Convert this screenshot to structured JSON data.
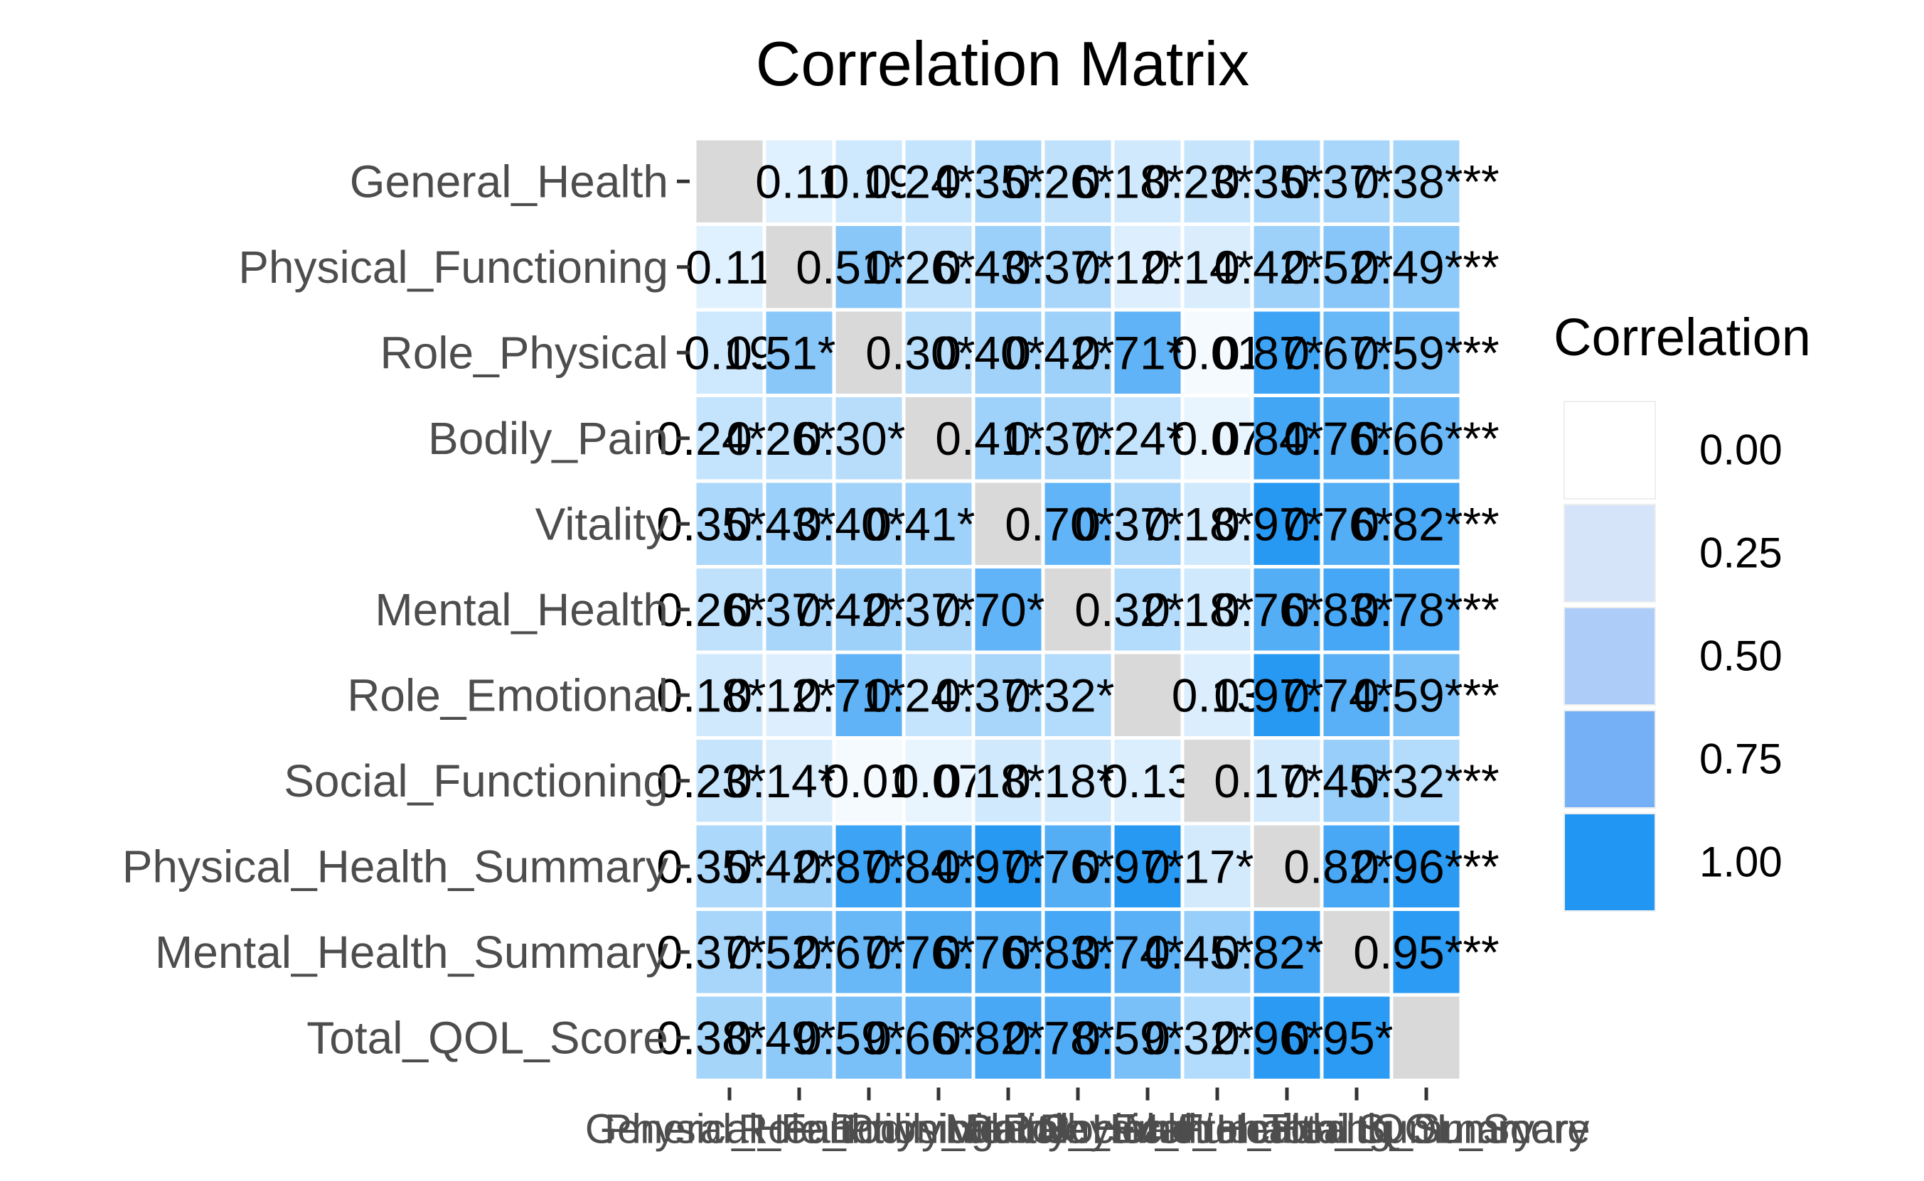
{
  "chart_data": {
    "type": "heatmap",
    "title": "Correlation Matrix",
    "variables": [
      "General_Health",
      "Physical_Functioning",
      "Role_Physical",
      "Bodily_Pain",
      "Vitality",
      "Mental_Health",
      "Role_Emotional",
      "Social_Functioning",
      "Physical_Health_Summary",
      "Mental_Health_Summary",
      "Total_QOL_Score"
    ],
    "values": [
      [
        null,
        0.11,
        0.19,
        0.24,
        0.35,
        0.26,
        0.18,
        0.23,
        0.35,
        0.37,
        0.38
      ],
      [
        0.11,
        null,
        0.51,
        0.26,
        0.43,
        0.37,
        0.12,
        0.14,
        0.42,
        0.52,
        0.49
      ],
      [
        0.19,
        0.51,
        null,
        0.3,
        0.4,
        0.42,
        0.71,
        0.01,
        0.87,
        0.67,
        0.59
      ],
      [
        0.24,
        0.26,
        0.3,
        null,
        0.41,
        0.37,
        0.24,
        0.07,
        0.84,
        0.76,
        0.66
      ],
      [
        0.35,
        0.43,
        0.4,
        0.41,
        null,
        0.7,
        0.37,
        0.18,
        0.97,
        0.76,
        0.82
      ],
      [
        0.26,
        0.37,
        0.42,
        0.37,
        0.7,
        null,
        0.32,
        0.18,
        0.76,
        0.83,
        0.78
      ],
      [
        0.18,
        0.12,
        0.71,
        0.24,
        0.37,
        0.32,
        null,
        0.13,
        0.97,
        0.74,
        0.59
      ],
      [
        0.23,
        0.14,
        0.01,
        0.07,
        0.18,
        0.18,
        0.13,
        null,
        0.17,
        0.45,
        0.32
      ],
      [
        0.35,
        0.42,
        0.87,
        0.84,
        0.97,
        0.76,
        0.97,
        0.17,
        null,
        0.82,
        0.96
      ],
      [
        0.37,
        0.52,
        0.67,
        0.76,
        0.76,
        0.83,
        0.74,
        0.45,
        0.82,
        null,
        0.95
      ],
      [
        0.38,
        0.49,
        0.59,
        0.66,
        0.82,
        0.78,
        0.59,
        0.32,
        0.96,
        0.95,
        null
      ]
    ],
    "labels": [
      [
        "",
        "0.11",
        "0.19",
        "0.24***",
        "0.35***",
        "0.26***",
        "0.18***",
        "0.23***",
        "0.35***",
        "0.37***",
        "0.38***"
      ],
      [
        "0.11",
        "",
        "0.51***",
        "0.26***",
        "0.43***",
        "0.37***",
        "0.12***",
        "0.14***",
        "0.42***",
        "0.52***",
        "0.49***"
      ],
      [
        "0.19",
        "0.51***",
        "",
        "0.30***",
        "0.40***",
        "0.42***",
        "0.71***",
        "0.01",
        "0.87***",
        "0.67***",
        "0.59***"
      ],
      [
        "0.24***",
        "0.26***",
        "0.30***",
        "",
        "0.41***",
        "0.37***",
        "0.24***",
        "0.07",
        "0.84***",
        "0.76***",
        "0.66***"
      ],
      [
        "0.35***",
        "0.43***",
        "0.40***",
        "0.41***",
        "",
        "0.70***",
        "0.37***",
        "0.18***",
        "0.97***",
        "0.76***",
        "0.82***"
      ],
      [
        "0.26***",
        "0.37***",
        "0.42***",
        "0.37***",
        "0.70***",
        "",
        "0.32***",
        "0.18***",
        "0.76***",
        "0.83***",
        "0.78***"
      ],
      [
        "0.18***",
        "0.12***",
        "0.71***",
        "0.24***",
        "0.37***",
        "0.32***",
        "",
        "0.13",
        "0.97***",
        "0.74***",
        "0.59***"
      ],
      [
        "0.23***",
        "0.14***",
        "0.01",
        "0.07",
        "0.18***",
        "0.18***",
        "0.13",
        "",
        "0.17***",
        "0.45***",
        "0.32***"
      ],
      [
        "0.35***",
        "0.42***",
        "0.87***",
        "0.84***",
        "0.97***",
        "0.76***",
        "0.97***",
        "0.17***",
        "",
        "0.82***",
        "0.96***"
      ],
      [
        "0.37***",
        "0.52***",
        "0.67***",
        "0.76***",
        "0.76***",
        "0.83***",
        "0.74***",
        "0.45***",
        "0.82***",
        "",
        "0.95***"
      ],
      [
        "0.38***",
        "0.49***",
        "0.59***",
        "0.66***",
        "0.82***",
        "0.78***",
        "0.59***",
        "0.32***",
        "0.96***",
        "0.95***",
        ""
      ]
    ],
    "diagonal_color": "#d9d9d9",
    "color_low": "#f7fbff",
    "color_high": "#2196f3",
    "limits": [
      0,
      1
    ],
    "legend": {
      "title": "Correlation",
      "breaks": [
        1.0,
        0.75,
        0.5,
        0.25,
        0.0
      ],
      "labels": [
        "1.00",
        "0.75",
        "0.50",
        "0.25",
        "0.00"
      ],
      "colors": [
        "#2196f3",
        "#75b0f6",
        "#aeccf8",
        "#d6e4fa",
        "#ffffff"
      ],
      "placement": "right"
    },
    "grid": false
  }
}
